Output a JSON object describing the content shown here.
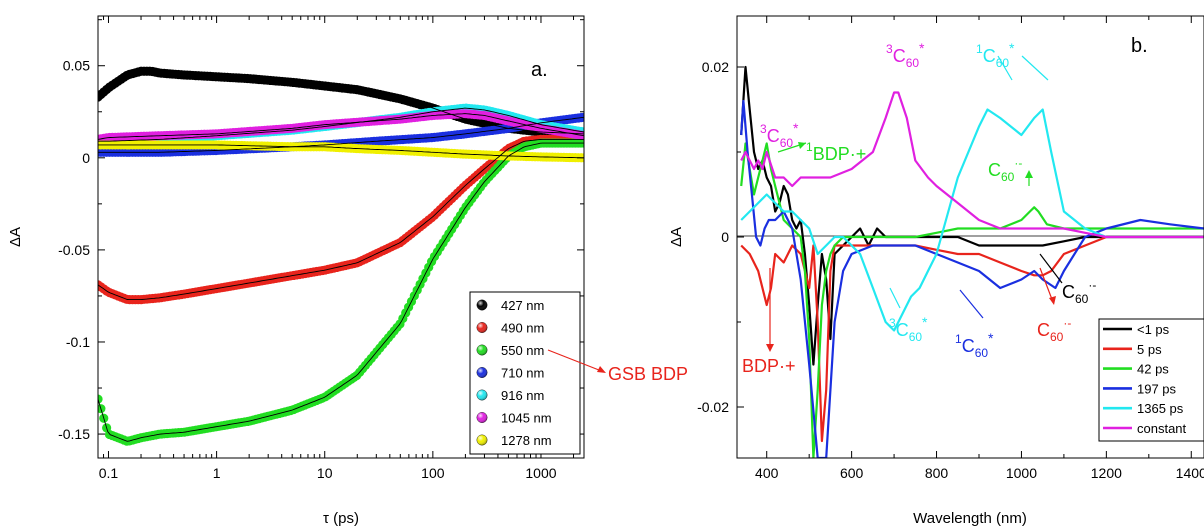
{
  "chart_data": [
    {
      "type": "scatter",
      "panel_label": "a.",
      "xlabel": "τ (ps)",
      "ylabel": "ΔA",
      "x_scale": "log",
      "xlim": [
        0.08,
        2500
      ],
      "ylim": [
        -0.163,
        0.077
      ],
      "xticks": [
        0.1,
        1,
        10,
        100,
        1000
      ],
      "xtick_labels": [
        "0.1",
        "1",
        "10",
        "100",
        "1000"
      ],
      "yticks": [
        -0.15,
        -0.1,
        -0.05,
        0,
        0.05
      ],
      "ytick_labels": [
        "-0.15",
        "-0.1",
        "-0.05",
        "0",
        "0.05"
      ],
      "legend_position": "bottom-right",
      "series": [
        {
          "name": "427 nm",
          "color": "#000000",
          "x": [
            0.08,
            0.1,
            0.15,
            0.2,
            0.25,
            0.3,
            0.5,
            1,
            2,
            5,
            10,
            20,
            50,
            100,
            200,
            500,
            1000,
            2500
          ],
          "y": [
            0.033,
            0.038,
            0.045,
            0.047,
            0.047,
            0.046,
            0.045,
            0.044,
            0.043,
            0.041,
            0.039,
            0.037,
            0.032,
            0.027,
            0.021,
            0.016,
            0.014,
            0.013
          ]
        },
        {
          "name": "490 nm",
          "color": "#e8241c",
          "x": [
            0.08,
            0.1,
            0.15,
            0.2,
            0.3,
            0.5,
            1,
            2,
            5,
            10,
            20,
            50,
            100,
            200,
            300,
            500,
            700,
            1000,
            1500,
            2500
          ],
          "y": [
            -0.069,
            -0.073,
            -0.077,
            -0.077,
            -0.076,
            -0.074,
            -0.071,
            -0.068,
            -0.064,
            -0.061,
            -0.057,
            -0.046,
            -0.032,
            -0.015,
            -0.006,
            0.005,
            0.009,
            0.01,
            0.01,
            0.01
          ]
        },
        {
          "name": "550 nm",
          "color": "#22dd22",
          "x": [
            0.08,
            0.1,
            0.15,
            0.2,
            0.3,
            0.5,
            1,
            2,
            5,
            10,
            20,
            50,
            100,
            200,
            300,
            500,
            700,
            1000,
            1500,
            2500
          ],
          "y": [
            -0.131,
            -0.15,
            -0.154,
            -0.152,
            -0.15,
            -0.149,
            -0.146,
            -0.143,
            -0.137,
            -0.13,
            -0.118,
            -0.09,
            -0.055,
            -0.027,
            -0.013,
            0.001,
            0.006,
            0.008,
            0.008,
            0.008
          ]
        },
        {
          "name": "710 nm",
          "color": "#1a2fe0",
          "x": [
            0.08,
            0.1,
            0.3,
            1,
            5,
            10,
            30,
            100,
            200,
            500,
            1000,
            2500
          ],
          "y": [
            0.003,
            0.003,
            0.003,
            0.004,
            0.006,
            0.007,
            0.009,
            0.011,
            0.013,
            0.016,
            0.019,
            0.022
          ]
        },
        {
          "name": "916 nm",
          "color": "#22e8f0",
          "x": [
            0.08,
            0.1,
            0.3,
            1,
            5,
            10,
            50,
            100,
            200,
            300,
            500,
            1000,
            2500
          ],
          "y": [
            0.009,
            0.009,
            0.01,
            0.012,
            0.015,
            0.017,
            0.022,
            0.025,
            0.027,
            0.026,
            0.023,
            0.018,
            0.014
          ]
        },
        {
          "name": "1045 nm",
          "color": "#e020e0",
          "x": [
            0.08,
            0.1,
            0.3,
            1,
            5,
            10,
            50,
            100,
            200,
            300,
            500,
            1000,
            2500
          ],
          "y": [
            0.01,
            0.011,
            0.012,
            0.013,
            0.016,
            0.018,
            0.021,
            0.023,
            0.024,
            0.023,
            0.02,
            0.016,
            0.012
          ]
        },
        {
          "name": "1278 nm",
          "color": "#f0f000",
          "x": [
            0.08,
            0.1,
            0.3,
            1,
            5,
            10,
            20,
            50,
            100,
            200,
            500,
            1000,
            2500
          ],
          "y": [
            0.007,
            0.007,
            0.007,
            0.007,
            0.006,
            0.006,
            0.005,
            0.004,
            0.003,
            0.002,
            0.001,
            0.0005,
            0.0
          ]
        }
      ]
    },
    {
      "type": "line",
      "panel_label": "b.",
      "xlabel": "Wavelength (nm)",
      "ylabel": "ΔA",
      "xlim": [
        330,
        1430
      ],
      "ylim": [
        -0.026,
        0.026
      ],
      "xticks": [
        400,
        600,
        800,
        1000,
        1200,
        1400
      ],
      "xtick_labels": [
        "400",
        "600",
        "800",
        "1000",
        "1200",
        "1400"
      ],
      "yticks": [
        -0.02,
        0,
        0.02
      ],
      "ytick_labels": [
        "-0.02",
        "0",
        "0.02"
      ],
      "legend_position": "bottom-right",
      "series": [
        {
          "name": "<1 ps",
          "color": "#000000",
          "x": [
            340,
            350,
            360,
            370,
            380,
            390,
            400,
            410,
            420,
            430,
            440,
            450,
            460,
            470,
            480,
            490,
            500,
            510,
            520,
            530,
            540,
            550,
            560,
            580,
            600,
            620,
            640,
            660,
            680,
            700,
            750,
            800,
            850,
            900,
            950,
            1000,
            1050,
            1100,
            1150,
            1200,
            1300,
            1430
          ],
          "y": [
            0.012,
            0.02,
            0.015,
            0.01,
            0.008,
            0.009,
            0.007,
            0.006,
            0.003,
            0.004,
            0.006,
            0.005,
            0.002,
            0.001,
            0.002,
            -0.002,
            -0.008,
            -0.015,
            -0.008,
            -0.002,
            -0.005,
            -0.012,
            -0.002,
            -0.001,
            0.0,
            0.001,
            -0.001,
            0.001,
            0.0,
            0.0,
            0.0,
            0.0,
            0.0,
            -0.001,
            -0.001,
            -0.001,
            -0.001,
            -0.0005,
            0.0,
            0.0,
            0.0,
            0.0
          ]
        },
        {
          "name": "5 ps",
          "color": "#e8241c",
          "x": [
            340,
            360,
            380,
            400,
            410,
            420,
            440,
            460,
            480,
            500,
            510,
            520,
            530,
            540,
            550,
            560,
            580,
            600,
            650,
            700,
            750,
            800,
            850,
            900,
            950,
            1000,
            1030,
            1050,
            1070,
            1100,
            1150,
            1200,
            1300,
            1430
          ],
          "y": [
            -0.001,
            -0.002,
            -0.004,
            -0.008,
            -0.006,
            -0.002,
            -0.003,
            -0.001,
            -0.002,
            -0.006,
            -0.001,
            -0.01,
            -0.024,
            -0.018,
            -0.004,
            -0.001,
            -0.001,
            -0.001,
            -0.001,
            -0.001,
            -0.001,
            -0.0015,
            -0.002,
            -0.002,
            -0.003,
            -0.004,
            -0.0045,
            -0.0045,
            -0.004,
            -0.002,
            -0.001,
            0.0,
            0.0,
            0.0
          ]
        },
        {
          "name": "42 ps",
          "color": "#22dd22",
          "x": [
            340,
            350,
            360,
            370,
            380,
            390,
            400,
            410,
            420,
            430,
            440,
            460,
            480,
            490,
            500,
            510,
            520,
            530,
            540,
            550,
            560,
            580,
            600,
            650,
            700,
            750,
            800,
            850,
            900,
            950,
            1000,
            1020,
            1030,
            1040,
            1060,
            1100,
            1200,
            1300,
            1430
          ],
          "y": [
            0.006,
            0.011,
            0.008,
            0.005,
            0.007,
            0.009,
            0.011,
            0.008,
            0.006,
            0.004,
            0.002,
            0.001,
            0.0,
            -0.004,
            -0.012,
            -0.026,
            -0.018,
            -0.008,
            -0.004,
            -0.002,
            -0.001,
            0.0,
            0.0,
            0.0,
            0.0,
            0.0,
            0.0005,
            0.001,
            0.001,
            0.001,
            0.002,
            0.003,
            0.0035,
            0.003,
            0.0015,
            0.001,
            0.001,
            0.001,
            0.001
          ]
        },
        {
          "name": "197 ps",
          "color": "#1a2fe0",
          "x": [
            340,
            345,
            355,
            365,
            375,
            385,
            395,
            405,
            420,
            440,
            460,
            480,
            500,
            520,
            540,
            550,
            560,
            580,
            600,
            650,
            700,
            750,
            800,
            850,
            900,
            950,
            1000,
            1030,
            1050,
            1080,
            1100,
            1150,
            1200,
            1280,
            1350,
            1430
          ],
          "y": [
            0.012,
            0.016,
            0.01,
            0.005,
            0.0,
            -0.001,
            0.001,
            0.002,
            0.002,
            0.003,
            0.001,
            -0.005,
            -0.015,
            -0.026,
            -0.026,
            -0.018,
            -0.01,
            -0.004,
            -0.002,
            -0.001,
            -0.001,
            -0.001,
            -0.002,
            -0.003,
            -0.004,
            -0.006,
            -0.005,
            -0.004,
            -0.005,
            -0.006,
            -0.004,
            0.0,
            0.001,
            0.002,
            0.0015,
            0.001
          ]
        },
        {
          "name": "1365 ps",
          "color": "#22e8f0",
          "x": [
            340,
            360,
            380,
            400,
            420,
            440,
            460,
            480,
            500,
            520,
            540,
            560,
            580,
            600,
            620,
            650,
            680,
            700,
            720,
            740,
            760,
            780,
            800,
            850,
            900,
            920,
            950,
            1000,
            1030,
            1050,
            1070,
            1100,
            1150,
            1200,
            1300,
            1430
          ],
          "y": [
            0.002,
            0.003,
            0.004,
            0.005,
            0.004,
            0.003,
            0.003,
            0.002,
            0.001,
            -0.002,
            -0.001,
            0.0,
            0.0,
            -0.001,
            -0.002,
            -0.006,
            -0.01,
            -0.011,
            -0.009,
            -0.007,
            -0.006,
            -0.004,
            -0.002,
            0.007,
            0.013,
            0.015,
            0.014,
            0.012,
            0.014,
            0.015,
            0.01,
            0.003,
            0.001,
            0.0,
            0.0,
            0.0
          ]
        },
        {
          "name": "constant",
          "color": "#e020e0",
          "x": [
            340,
            350,
            360,
            370,
            380,
            390,
            400,
            420,
            440,
            460,
            480,
            500,
            550,
            600,
            650,
            680,
            700,
            710,
            730,
            750,
            780,
            800,
            850,
            900,
            950,
            1000,
            1050,
            1100,
            1150,
            1200,
            1300,
            1430
          ],
          "y": [
            0.009,
            0.01,
            0.009,
            0.008,
            0.009,
            0.008,
            0.01,
            0.007,
            0.007,
            0.006,
            0.007,
            0.007,
            0.007,
            0.008,
            0.01,
            0.014,
            0.017,
            0.017,
            0.014,
            0.009,
            0.007,
            0.006,
            0.004,
            0.002,
            0.001,
            0.001,
            0.001,
            0.001,
            0.0005,
            0.0,
            0.0,
            0.0
          ]
        }
      ],
      "annotations": {
        "c60_triplet_top": "C60*",
        "c60_singlet_top": "C60*",
        "c60_triplet_left": "C60*",
        "bdp_cation_green": "BDP·+",
        "c60_anion_green": "C60·-",
        "c60_anion_black": "C60·-",
        "c60_anion_red": "C60·-",
        "c60_singlet_blue": "C60*",
        "c60_triplet_cyan": "C60*",
        "bdp_cation_red": "BDP·+",
        "gsb_bdp": "GSB BDP"
      }
    }
  ]
}
